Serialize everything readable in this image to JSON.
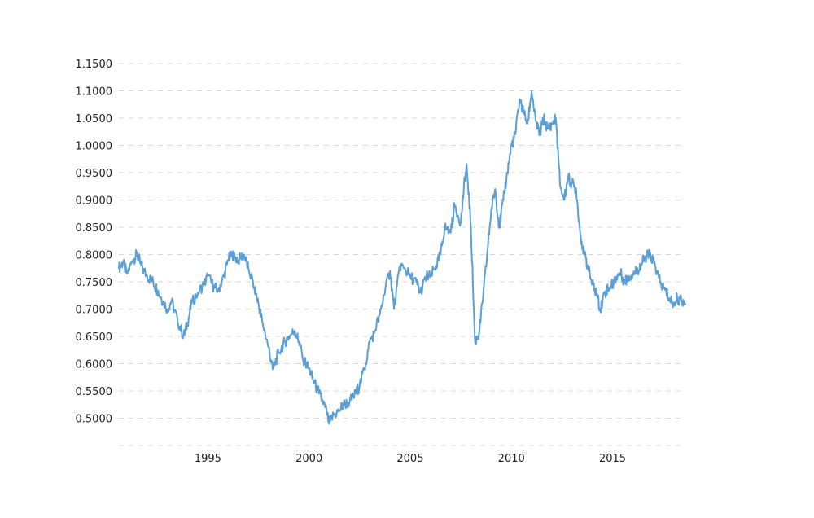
{
  "chart_data": {
    "type": "line",
    "title": "",
    "xlabel": "",
    "ylabel": "",
    "xlim": [
      1990.6,
      2018.6
    ],
    "ylim": [
      0.45,
      1.15
    ],
    "grid": true,
    "y_ticks": [
      "1.1500",
      "1.1000",
      "1.0500",
      "1.0000",
      "0.9500",
      "0.9000",
      "0.8500",
      "0.8000",
      "0.7500",
      "0.7000",
      "0.6500",
      "0.6000",
      "0.5500",
      "0.5000"
    ],
    "y_tick_values": [
      1.15,
      1.1,
      1.05,
      1.0,
      0.95,
      0.9,
      0.85,
      0.8,
      0.75,
      0.7,
      0.65,
      0.6,
      0.55,
      0.5
    ],
    "x_ticks": [
      "1995",
      "2000",
      "2005",
      "2010",
      "2015"
    ],
    "x_tick_values": [
      1995,
      2000,
      2005,
      2010,
      2015
    ],
    "color": "#5b9fd5",
    "series": [
      {
        "x": [
          1990.6,
          1990.8,
          1991.0,
          1991.3,
          1991.5,
          1991.7,
          1992.0,
          1992.3,
          1992.5,
          1992.7,
          1993.0,
          1993.2,
          1993.5,
          1993.8,
          1994.0,
          1994.2,
          1994.5,
          1994.8,
          1995.0,
          1995.3,
          1995.5,
          1995.8,
          1996.0,
          1996.2,
          1996.5,
          1996.8,
          1997.0,
          1997.3,
          1997.5,
          1997.7,
          1998.0,
          1998.2,
          1998.5,
          1998.8,
          1999.0,
          1999.3,
          1999.5,
          1999.7,
          2000.0,
          2000.2,
          2000.5,
          2000.8,
          2001.0,
          2001.2,
          2001.5,
          2001.7,
          2002.0,
          2002.3,
          2002.5,
          2002.8,
          2003.0,
          2003.2,
          2003.5,
          2003.7,
          2004.0,
          2004.2,
          2004.5,
          2004.7,
          2005.0,
          2005.3,
          2005.5,
          2005.8,
          2006.0,
          2006.3,
          2006.5,
          2006.7,
          2007.0,
          2007.2,
          2007.5,
          2007.7,
          2007.8,
          2008.0,
          2008.2,
          2008.4,
          2008.6,
          2008.8,
          2009.0,
          2009.2,
          2009.4,
          2009.6,
          2009.8,
          2010.0,
          2010.2,
          2010.4,
          2010.6,
          2010.8,
          2011.0,
          2011.2,
          2011.4,
          2011.6,
          2011.8,
          2012.0,
          2012.2,
          2012.4,
          2012.6,
          2012.8,
          2013.0,
          2013.2,
          2013.4,
          2013.6,
          2013.8,
          2014.0,
          2014.2,
          2014.4,
          2014.6,
          2014.8,
          2015.0,
          2015.2,
          2015.4,
          2015.6,
          2015.8,
          2016.0,
          2016.2,
          2016.4,
          2016.6,
          2016.8,
          2017.0,
          2017.2,
          2017.4,
          2017.6,
          2017.8,
          2018.0,
          2018.2,
          2018.4,
          2018.6
        ],
        "y": [
          0.775,
          0.785,
          0.765,
          0.79,
          0.8,
          0.78,
          0.76,
          0.75,
          0.735,
          0.72,
          0.7,
          0.715,
          0.68,
          0.65,
          0.675,
          0.71,
          0.73,
          0.745,
          0.76,
          0.74,
          0.735,
          0.76,
          0.79,
          0.8,
          0.79,
          0.8,
          0.775,
          0.74,
          0.71,
          0.675,
          0.63,
          0.59,
          0.62,
          0.64,
          0.65,
          0.66,
          0.64,
          0.61,
          0.59,
          0.57,
          0.545,
          0.52,
          0.49,
          0.505,
          0.515,
          0.525,
          0.53,
          0.545,
          0.56,
          0.6,
          0.64,
          0.655,
          0.69,
          0.725,
          0.77,
          0.7,
          0.78,
          0.775,
          0.76,
          0.75,
          0.73,
          0.76,
          0.76,
          0.78,
          0.8,
          0.85,
          0.84,
          0.89,
          0.86,
          0.94,
          0.96,
          0.85,
          0.64,
          0.655,
          0.72,
          0.8,
          0.88,
          0.92,
          0.85,
          0.9,
          0.95,
          1.0,
          1.02,
          1.085,
          1.06,
          1.04,
          1.1,
          1.045,
          1.02,
          1.05,
          1.03,
          1.04,
          1.05,
          0.93,
          0.9,
          0.94,
          0.93,
          0.92,
          0.84,
          0.8,
          0.775,
          0.745,
          0.73,
          0.7,
          0.73,
          0.74,
          0.745,
          0.76,
          0.765,
          0.75,
          0.76,
          0.765,
          0.77,
          0.78,
          0.795,
          0.8,
          0.79,
          0.765,
          0.745,
          0.735,
          0.72,
          0.71,
          0.72,
          0.715,
          0.71
        ]
      }
    ]
  }
}
